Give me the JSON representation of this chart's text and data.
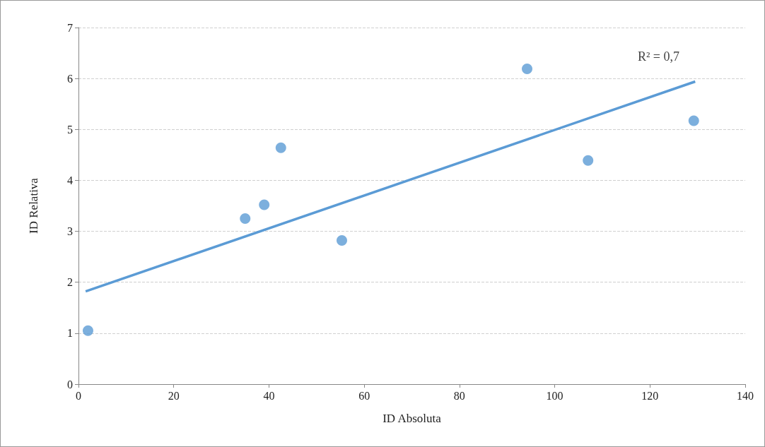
{
  "chart_data": {
    "type": "scatter",
    "xlabel": "ID Absoluta",
    "ylabel": "ID Relativa",
    "xlim": [
      0,
      140
    ],
    "xticks": [
      0,
      20,
      40,
      60,
      80,
      100,
      120,
      140
    ],
    "ylim": [
      0,
      7
    ],
    "yticks": [
      0,
      1,
      2,
      3,
      4,
      5,
      6,
      7
    ],
    "grid": "y",
    "marker": "circle",
    "series": [
      {
        "color": "#5b9bd5",
        "x": [
          2,
          35,
          39,
          42.5,
          55.3,
          94.2,
          107,
          129.2
        ],
        "values": [
          1.05,
          3.25,
          3.52,
          4.64,
          2.82,
          6.19,
          4.39,
          5.17
        ]
      },
      {
        "type": "line",
        "marker": "none",
        "color": "#5b9bd5",
        "x": [
          1.5,
          129.5
        ],
        "values": [
          1.82,
          5.94
        ]
      }
    ],
    "annotations": [
      "R² = 0,7"
    ]
  }
}
